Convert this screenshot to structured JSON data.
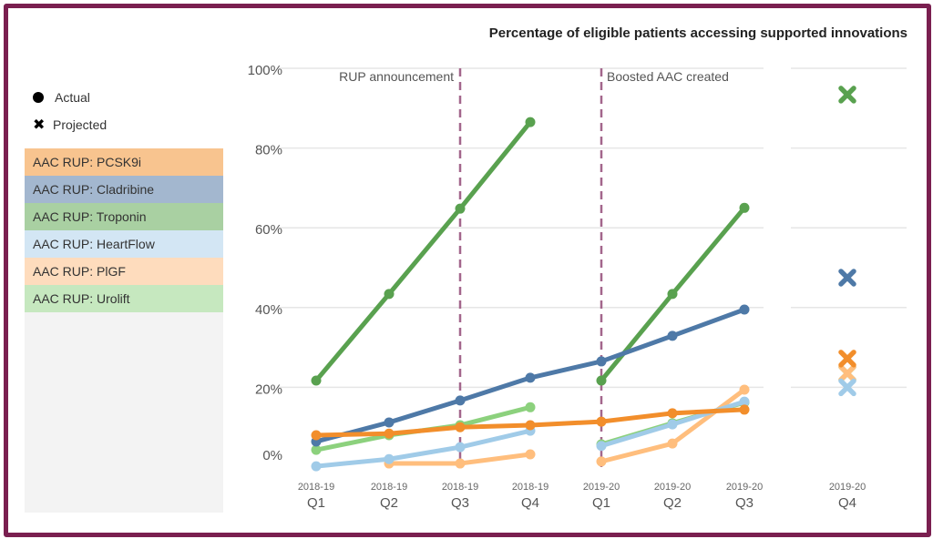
{
  "chart_data": {
    "type": "line",
    "title": "Percentage of eligible patients accessing supported innovations",
    "categories": [
      {
        "year": "2018-19",
        "quarter": "Q1"
      },
      {
        "year": "2018-19",
        "quarter": "Q2"
      },
      {
        "year": "2018-19",
        "quarter": "Q3"
      },
      {
        "year": "2018-19",
        "quarter": "Q4"
      },
      {
        "year": "2019-20",
        "quarter": "Q1"
      },
      {
        "year": "2019-20",
        "quarter": "Q2"
      },
      {
        "year": "2019-20",
        "quarter": "Q3"
      },
      {
        "year": "2019-20",
        "quarter": "Q4"
      }
    ],
    "yticks": [
      "0%",
      "20%",
      "40%",
      "60%",
      "80%",
      "100%"
    ],
    "ylim": [
      0,
      100
    ],
    "grid": true,
    "marker_legend": {
      "actual": "Actual",
      "projected": "Projected"
    },
    "annotations": [
      {
        "label": "RUP announcement",
        "at": "2018-19 Q3"
      },
      {
        "label": "Boosted AAC created",
        "at": "2019-20 Q1"
      }
    ],
    "annotation_color": "#a3668c",
    "series": [
      {
        "name": "AAC RUP: PCSK9i",
        "color": "#f28e2b",
        "legend_bg": "#f8c48f",
        "actual": [
          8.0,
          8.4,
          10.0,
          10.5,
          11.4,
          13.5,
          14.4
        ],
        "projected": 27.2
      },
      {
        "name": "AAC RUP: Cladribine",
        "color": "#4e79a7",
        "legend_bg": "#a3b7cf",
        "actual": [
          6.4,
          11.2,
          16.7,
          22.4,
          26.5,
          32.9,
          39.5
        ],
        "projected": 47.5
      },
      {
        "name": "AAC RUP: Troponin",
        "color": "#59a14f",
        "legend_bg": "#a9d0a2",
        "actual": [
          21.7,
          43.4,
          64.8,
          86.5,
          21.7,
          43.4,
          65.0
        ],
        "projected": 93.4,
        "break_after": 3
      },
      {
        "name": "AAC RUP: HeartFlow",
        "color": "#a0cbe8",
        "legend_bg": "#d3e6f4",
        "actual": [
          0.2,
          2.0,
          5.0,
          9.1,
          5.3,
          10.7,
          16.4
        ],
        "projected": 20.0,
        "break_after": 3
      },
      {
        "name": "AAC RUP: PlGF",
        "color": "#ffbe7d",
        "legend_bg": "#fedcbd",
        "actual": [
          null,
          0.9,
          0.9,
          3.2,
          1.4,
          5.9,
          19.4
        ],
        "projected": 23.5,
        "break_after": 3
      },
      {
        "name": "AAC RUP: Urolift",
        "color": "#8cd17d",
        "legend_bg": "#c6e8bf",
        "actual": [
          4.3,
          8.0,
          10.5,
          15.0,
          5.7,
          11.0,
          16.2
        ],
        "projected": 23.5,
        "break_after": 3
      }
    ]
  }
}
